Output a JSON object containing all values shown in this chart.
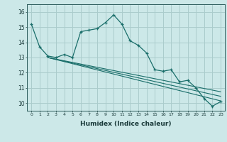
{
  "xlabel": "Humidex (Indice chaleur)",
  "bg_color": "#cce8e8",
  "grid_color": "#aacccc",
  "line_color": "#1a6e6a",
  "xlim": [
    -0.5,
    23.5
  ],
  "ylim": [
    9.5,
    16.5
  ],
  "xticks": [
    0,
    1,
    2,
    3,
    4,
    5,
    6,
    7,
    8,
    9,
    10,
    11,
    12,
    13,
    14,
    15,
    16,
    17,
    18,
    19,
    20,
    21,
    22,
    23
  ],
  "yticks": [
    10,
    11,
    12,
    13,
    14,
    15,
    16
  ],
  "line1_x": [
    0,
    1,
    2,
    3,
    4,
    5,
    6,
    7,
    8,
    9,
    10,
    11,
    12,
    13,
    14,
    15,
    16,
    17,
    18,
    19,
    20,
    21,
    22,
    23
  ],
  "line1_y": [
    15.2,
    13.7,
    13.1,
    13.0,
    13.2,
    13.0,
    14.7,
    14.8,
    14.9,
    15.3,
    15.8,
    15.2,
    14.1,
    13.8,
    13.3,
    12.2,
    12.1,
    12.2,
    11.4,
    11.5,
    11.0,
    10.3,
    9.8,
    10.1
  ],
  "line2_x": [
    2,
    23
  ],
  "line2_y": [
    13.0,
    10.15
  ],
  "line3_x": [
    2,
    23
  ],
  "line3_y": [
    13.0,
    10.45
  ],
  "line4_x": [
    2,
    23
  ],
  "line4_y": [
    13.0,
    10.75
  ]
}
